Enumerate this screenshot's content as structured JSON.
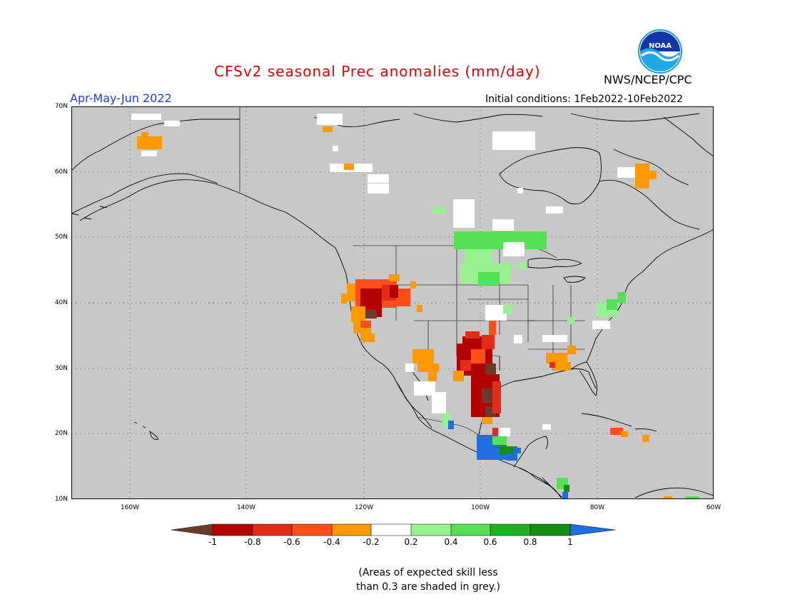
{
  "header": {
    "title": "CFSv2 seasonal Prec anomalies (mm/day)",
    "agency": "NWS/NCEP/CPC",
    "logo_text": "NOAA",
    "period": "Apr-May-Jun 2022",
    "initial_conditions": "Initial conditions: 1Feb2022-10Feb2022"
  },
  "map": {
    "background_color": "#c8c8c8",
    "land_outline_color": "#000000",
    "grid": "dotted",
    "lat_labels": [
      "70N",
      "60N",
      "50N",
      "40N",
      "30N",
      "20N",
      "10N"
    ],
    "lon_labels": [
      "160W",
      "140W",
      "120W",
      "100W",
      "80W",
      "60W"
    ]
  },
  "colorbar": {
    "labels": [
      "-1",
      "-0.8",
      "-0.6",
      "-0.4",
      "-0.2",
      "0.2",
      "0.4",
      "0.6",
      "0.8",
      "1"
    ],
    "colors": [
      "#6b3a2a",
      "#b30000",
      "#e32c1a",
      "#ff4f19",
      "#ff9900",
      "#ffffff",
      "#99f090",
      "#55e055",
      "#22b022",
      "#118f11",
      "#1f6fe0"
    ]
  },
  "footnote": "(Areas of expected skill less\nthan 0.3 are shaded in grey.)"
}
